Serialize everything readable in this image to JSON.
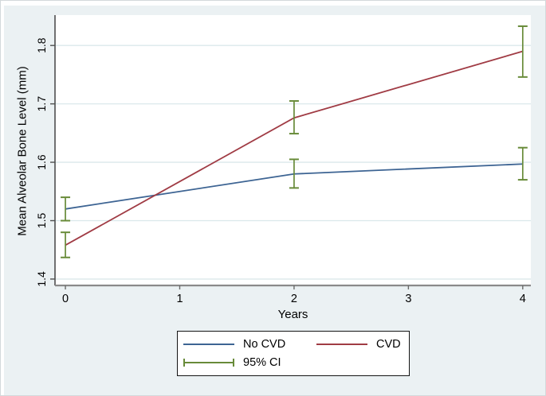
{
  "figure": {
    "background": "#ebf1f3",
    "plot_background": "#ffffff",
    "grid_color": "#dbe8eb",
    "axis_color": "#6b6b6b",
    "text_color": "#000000"
  },
  "chart_data": {
    "type": "line",
    "title": "",
    "xlabel": "Years",
    "ylabel": "Mean Alveolar Bone Level (mm)",
    "x": [
      0,
      2,
      4
    ],
    "xticks": [
      0,
      1,
      2,
      3,
      4
    ],
    "yticks": [
      1.4,
      1.5,
      1.6,
      1.7,
      1.8
    ],
    "xlim": [
      -0.091,
      4.071
    ],
    "ylim": [
      1.389,
      1.852
    ],
    "grid": "horizontal-only",
    "legend_position": "bottom-center-boxed",
    "series": [
      {
        "name": "No CVD",
        "color": "#3d6493",
        "values": [
          1.52,
          1.58,
          1.597
        ],
        "ci_low": [
          1.5,
          1.556,
          1.57
        ],
        "ci_high": [
          1.54,
          1.605,
          1.625
        ]
      },
      {
        "name": "CVD",
        "color": "#a03b44",
        "values": [
          1.458,
          1.676,
          1.79
        ],
        "ci_low": [
          1.437,
          1.649,
          1.746
        ],
        "ci_high": [
          1.48,
          1.705,
          1.833
        ]
      }
    ],
    "ci_legend": {
      "label": "95% CI",
      "color": "#688b39"
    }
  }
}
